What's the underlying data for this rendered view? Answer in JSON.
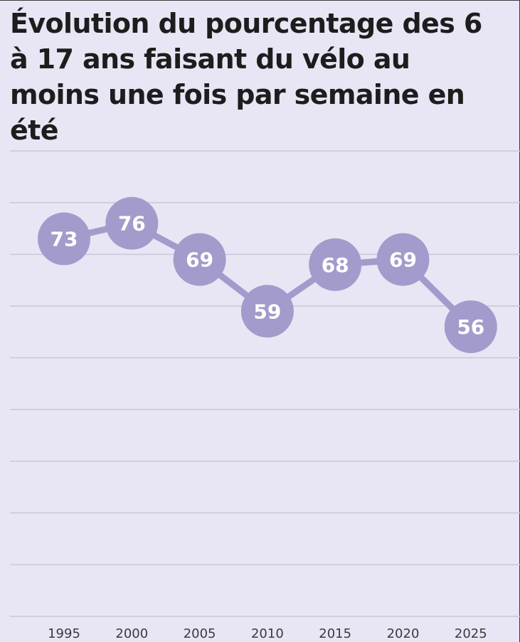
{
  "title": "Évolution du pourcentage des 6 à 17 ans faisant du vélo au moins une fois par semaine en été",
  "colors": {
    "background": "#e8e6f4",
    "marker": "#a39bcb",
    "line": "#a39bcb",
    "gridline": "#c8c6d8",
    "label": "#ffffff",
    "text": "#1d1d1d"
  },
  "chart_data": {
    "type": "line",
    "title": "Évolution du pourcentage des 6 à 17 ans faisant du vélo au moins une fois par semaine en été",
    "x": [
      "1995",
      "2000",
      "2005",
      "2010",
      "2015",
      "2020",
      "2025"
    ],
    "series": [
      {
        "values": [
          73,
          76,
          69,
          59,
          68,
          69,
          56
        ]
      }
    ],
    "xlabel": "",
    "ylabel": "",
    "ylim": [
      0,
      90
    ],
    "grid": true,
    "data_labels": true,
    "legend": "none"
  }
}
